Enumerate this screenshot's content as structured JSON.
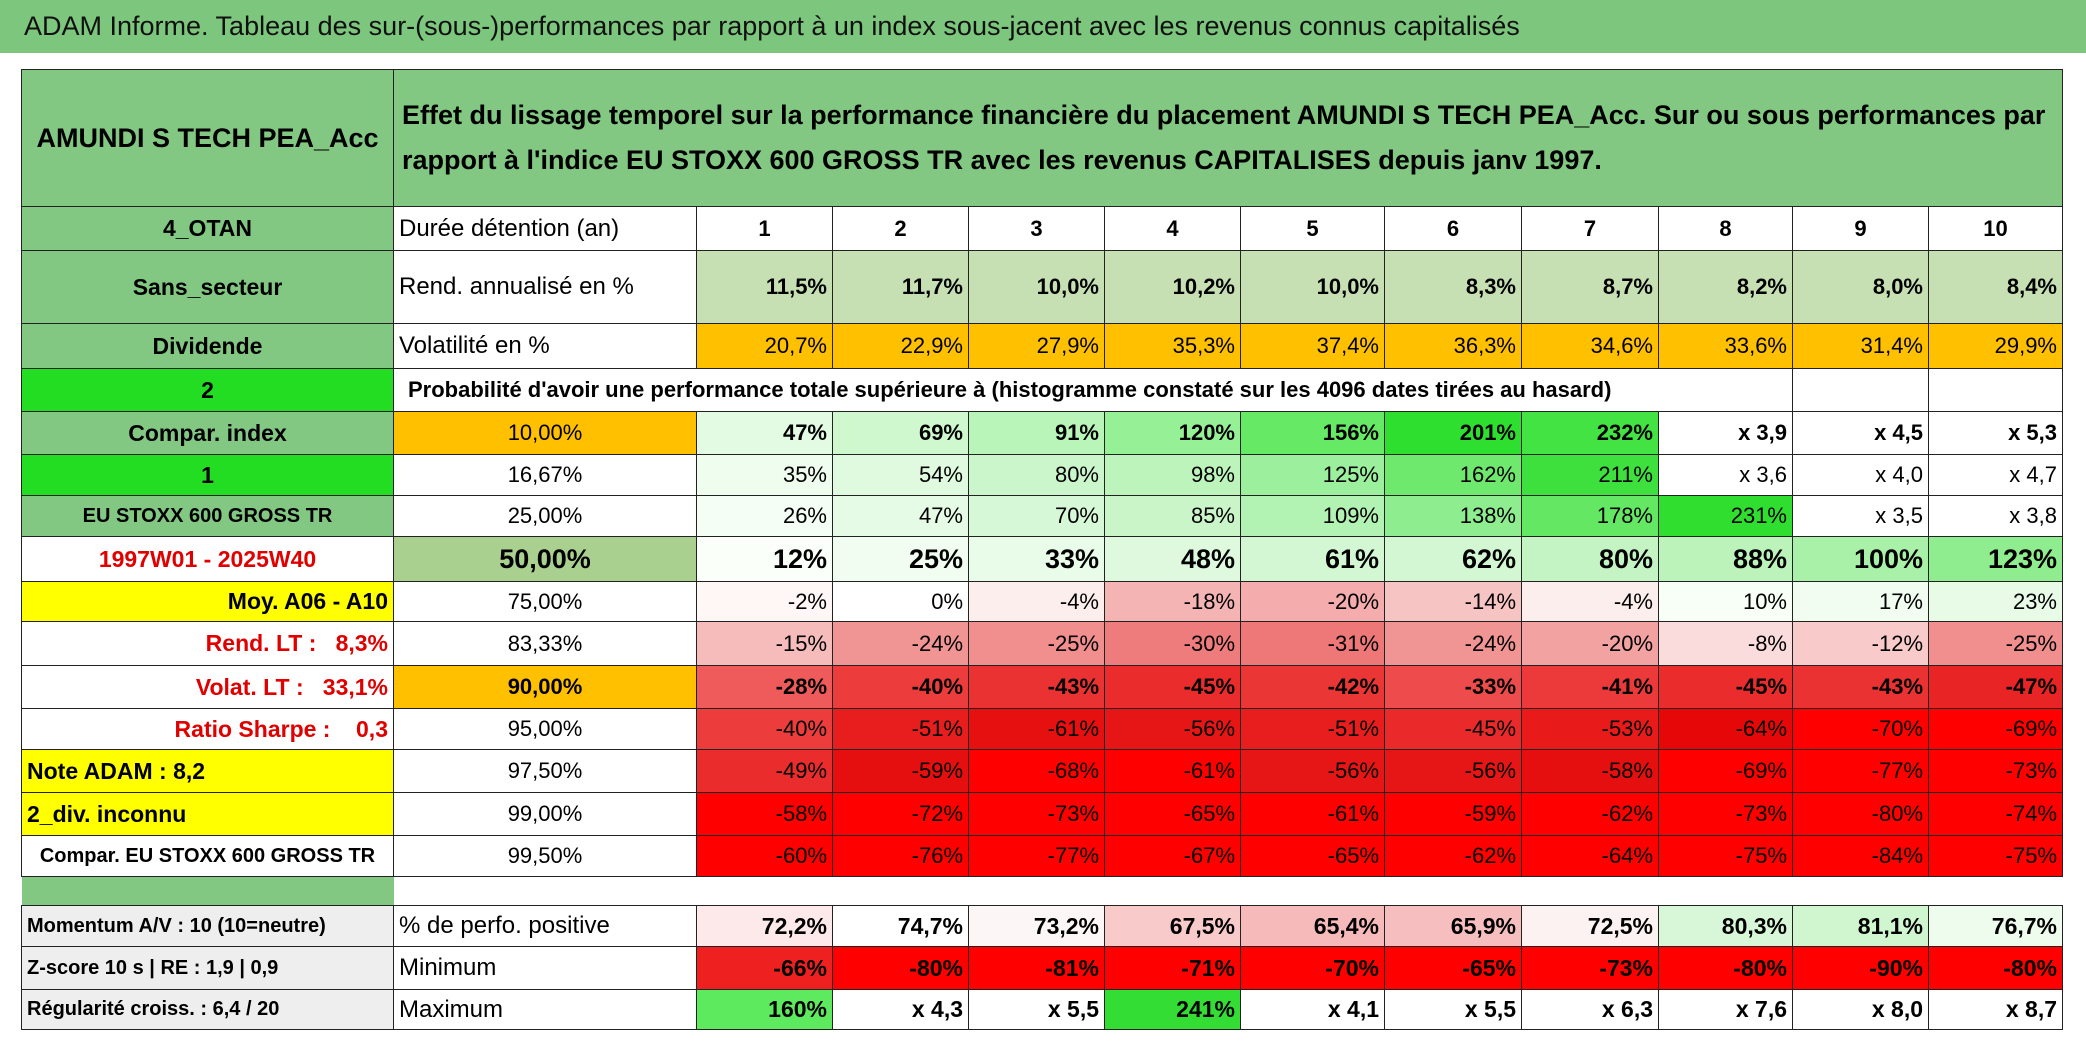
{
  "title": "ADAM Informe. Tableau des sur-(sous-)performances par rapport à un index sous-jacent avec les revenus connus capitalisés",
  "header": {
    "fund": "AMUNDI S TECH PEA_Acc",
    "description": "Effet du lissage temporel sur la performance financière du placement AMUNDI S TECH PEA_Acc. Sur ou sous performances par rapport à l'indice EU STOXX 600 GROSS TR avec les revenus CAPITALISES depuis janv 1997."
  },
  "rows": [
    {
      "label": "4_OTAN",
      "name": "Durée détention (an)",
      "values": [
        "1",
        "2",
        "3",
        "4",
        "5",
        "6",
        "7",
        "8",
        "9",
        "10"
      ]
    },
    {
      "label": "Sans_secteur",
      "name": "Rend. annualisé en %",
      "values": [
        "11,5%",
        "11,7%",
        "10,0%",
        "10,2%",
        "10,0%",
        "8,3%",
        "8,7%",
        "8,2%",
        "8,0%",
        "8,4%"
      ]
    },
    {
      "label": "Dividende",
      "name": "Volatilité en %",
      "values": [
        "20,7%",
        "22,9%",
        "27,9%",
        "35,3%",
        "37,4%",
        "36,3%",
        "34,6%",
        "33,6%",
        "31,4%",
        "29,9%"
      ]
    },
    {
      "label": "2",
      "text": "Probabilité d'avoir une performance totale supérieure à (histogramme constaté sur les 4096 dates tirées au hasard)"
    },
    {
      "label": "Compar. index",
      "name": "10,00%",
      "values": [
        "47%",
        "69%",
        "91%",
        "120%",
        "156%",
        "201%",
        "232%",
        "x 3,9",
        "x 4,5",
        "x 5,3"
      ]
    },
    {
      "label": "1",
      "name": "16,67%",
      "values": [
        "35%",
        "54%",
        "80%",
        "98%",
        "125%",
        "162%",
        "211%",
        "x 3,6",
        "x 4,0",
        "x 4,7"
      ]
    },
    {
      "label": "EU STOXX 600 GROSS TR",
      "name": "25,00%",
      "values": [
        "26%",
        "47%",
        "70%",
        "85%",
        "109%",
        "138%",
        "178%",
        "231%",
        "x 3,5",
        "x 3,8"
      ]
    },
    {
      "label": "1997W01 - 2025W40",
      "name": "50,00%",
      "values": [
        "12%",
        "25%",
        "33%",
        "48%",
        "61%",
        "62%",
        "80%",
        "88%",
        "100%",
        "123%"
      ]
    },
    {
      "label": "Moy. A06 - A10",
      "name": "75,00%",
      "values": [
        "-2%",
        "0%",
        "-4%",
        "-18%",
        "-20%",
        "-14%",
        "-4%",
        "10%",
        "17%",
        "23%"
      ]
    },
    {
      "label": "Rend. LT :   8,3%",
      "name": "83,33%",
      "values": [
        "-15%",
        "-24%",
        "-25%",
        "-30%",
        "-31%",
        "-24%",
        "-20%",
        "-8%",
        "-12%",
        "-25%"
      ]
    },
    {
      "label": "Volat. LT :   33,1%",
      "name": "90,00%",
      "values": [
        "-28%",
        "-40%",
        "-43%",
        "-45%",
        "-42%",
        "-33%",
        "-41%",
        "-45%",
        "-43%",
        "-47%"
      ]
    },
    {
      "label": "Ratio Sharpe :    0,3",
      "name": "95,00%",
      "values": [
        "-40%",
        "-51%",
        "-61%",
        "-56%",
        "-51%",
        "-45%",
        "-53%",
        "-64%",
        "-70%",
        "-69%"
      ]
    },
    {
      "label": "Note ADAM : 8,2",
      "name": "97,50%",
      "values": [
        "-49%",
        "-59%",
        "-68%",
        "-61%",
        "-56%",
        "-56%",
        "-58%",
        "-69%",
        "-77%",
        "-73%"
      ]
    },
    {
      "label": "2_div. inconnu",
      "name": "99,00%",
      "values": [
        "-58%",
        "-72%",
        "-73%",
        "-65%",
        "-61%",
        "-59%",
        "-62%",
        "-73%",
        "-80%",
        "-74%"
      ]
    },
    {
      "label": "Compar. EU STOXX 600 GROSS TR",
      "name": "99,50%",
      "values": [
        "-60%",
        "-76%",
        "-77%",
        "-67%",
        "-65%",
        "-62%",
        "-64%",
        "-75%",
        "-84%",
        "-75%"
      ]
    }
  ],
  "footer_rows": [
    {
      "label": "Momentum A/V : 10 (10=neutre)",
      "name": "% de perfo. positive",
      "values": [
        "72,2%",
        "74,7%",
        "73,2%",
        "67,5%",
        "65,4%",
        "65,9%",
        "72,5%",
        "80,3%",
        "81,1%",
        "76,7%"
      ]
    },
    {
      "label": "Z-score 10 s | RE : 1,9 | 0,9",
      "name": "Minimum",
      "values": [
        "-66%",
        "-80%",
        "-81%",
        "-71%",
        "-70%",
        "-65%",
        "-73%",
        "-80%",
        "-90%",
        "-80%"
      ]
    },
    {
      "label": "Régularité croiss. : 6,4 / 20",
      "name": "Maximum",
      "values": [
        "160%",
        "x 4,3",
        "x 5,5",
        "241%",
        "x 4,1",
        "x 5,5",
        "x 6,3",
        "x 7,6",
        "x 8,0",
        "x 8,7"
      ]
    }
  ]
}
